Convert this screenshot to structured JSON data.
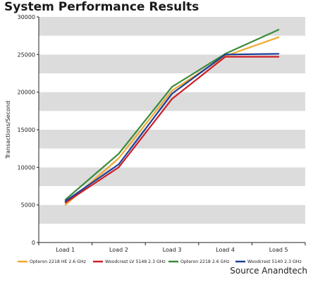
{
  "title": "System Performance Results",
  "source": "Source Anandtech",
  "chart_data": {
    "type": "line",
    "title": "System Performance Results",
    "xlabel": "",
    "ylabel": "Transactions/Second",
    "ylim": [
      0,
      30000
    ],
    "ytick_step": 2500,
    "ytick_labels": [
      "0",
      "5000",
      "10000",
      "15000",
      "20000",
      "25000",
      "30000"
    ],
    "categories": [
      "Load 1",
      "Load 2",
      "Load 3",
      "Load 4",
      "Load 5"
    ],
    "grid": "alternating horizontal bands",
    "legend_position": "bottom",
    "series": [
      {
        "name": "Opteron 2218 HE 2.6 GHz",
        "color": "#f0a830",
        "values": [
          5000,
          11200,
          20200,
          24800,
          27300
        ]
      },
      {
        "name": "Woodcrest LV 5148 2.3 GHz",
        "color": "#cc1f28",
        "values": [
          5300,
          10000,
          19100,
          24700,
          24700
        ]
      },
      {
        "name": "Opteron 2218 2.6 GHz",
        "color": "#3a8a3a",
        "values": [
          5700,
          11800,
          20700,
          25100,
          28300
        ]
      },
      {
        "name": "Woodcrest 5140 2.3 GHz",
        "color": "#1f3f99",
        "values": [
          5500,
          10400,
          19800,
          25000,
          25100
        ]
      }
    ]
  }
}
